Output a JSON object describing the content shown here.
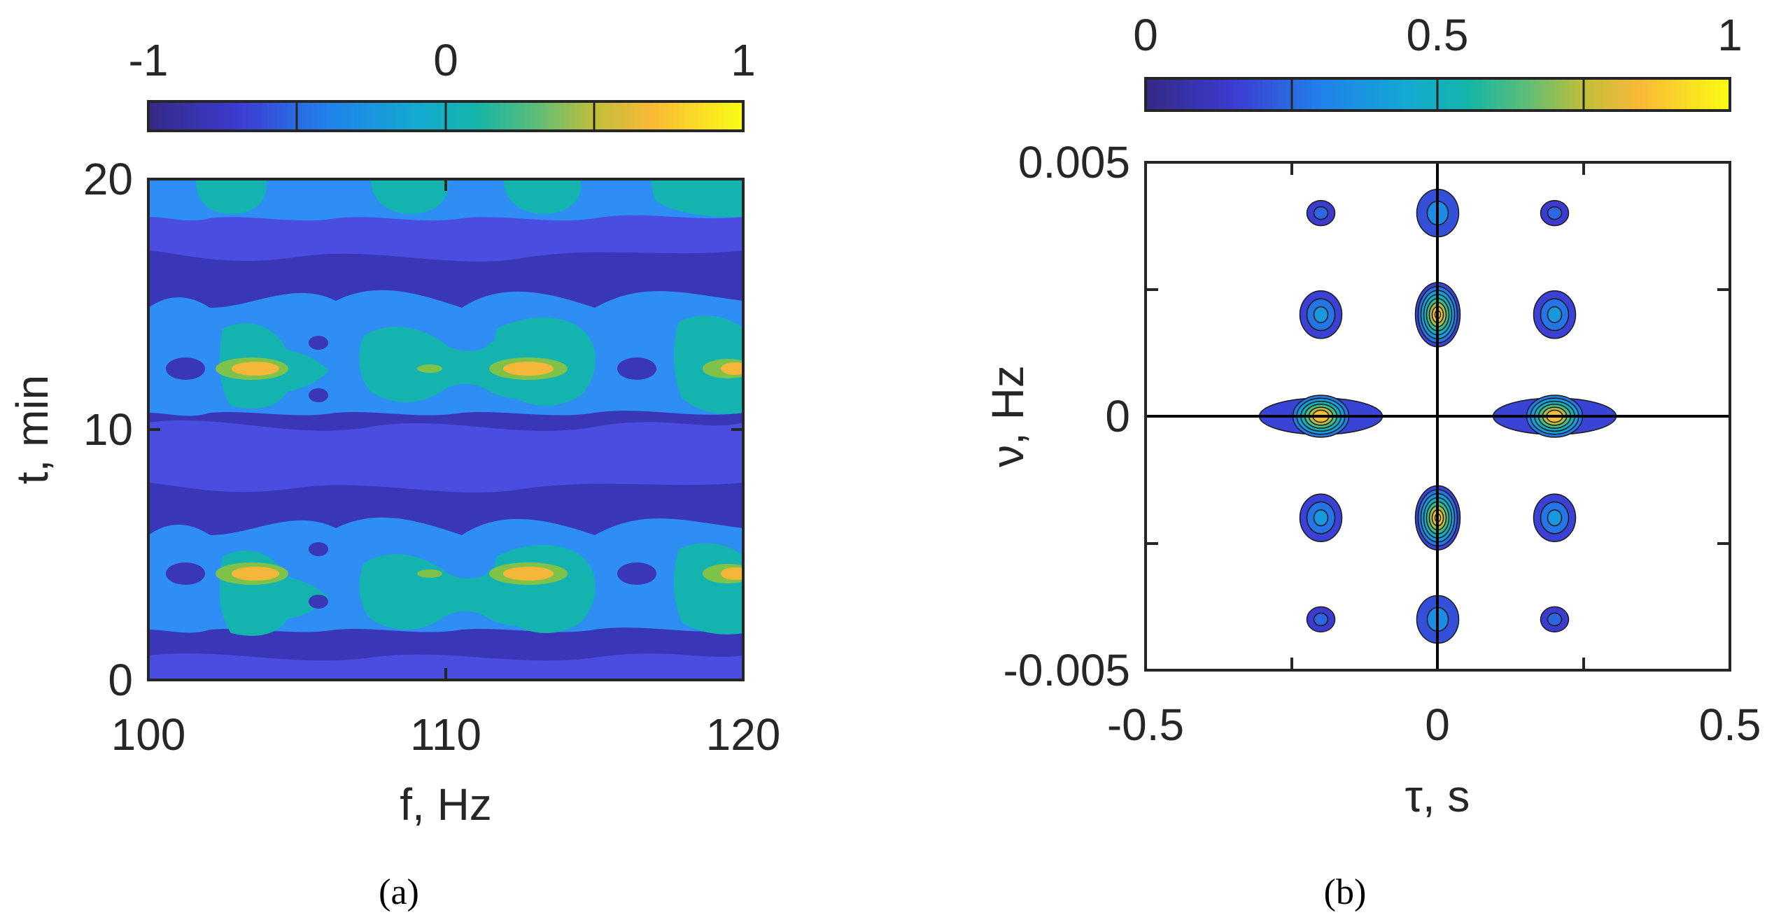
{
  "chart_data": [
    {
      "type": "heatmap",
      "panel": "a",
      "caption": "(a)",
      "xlabel": "f, Hz",
      "ylabel": "t, min",
      "xlim": [
        100,
        120
      ],
      "ylim": [
        0,
        20
      ],
      "x_ticks": [
        "100",
        "110",
        "120"
      ],
      "y_ticks": [
        "0",
        "10",
        "20"
      ],
      "colorbar": {
        "range": [
          -1,
          1
        ],
        "levels": [
          -1,
          -0.5,
          0,
          0.5,
          1
        ],
        "tick_labels": [
          "-1",
          "0",
          "1"
        ],
        "placement": "top"
      },
      "description_values": {
        "modulation_period_min": 8.3,
        "peak_rows_t_min": [
          4.2,
          12.5
        ],
        "trough_rows_t_min": [
          0.3,
          8.5,
          16.8
        ],
        "peak_columns_f_hz": [
          104.1,
          113,
          120
        ],
        "peak_value": 0.85,
        "trough_value": -0.95
      }
    },
    {
      "type": "heatmap",
      "panel": "b",
      "caption": "(b)",
      "xlabel": "τ, s",
      "ylabel": "ν, Hz",
      "xlim": [
        -0.5,
        0.5
      ],
      "ylim": [
        -0.005,
        0.005
      ],
      "x_ticks": [
        "-0.5",
        "0",
        "0.5"
      ],
      "y_ticks": [
        "-0.005",
        "0",
        "0.005"
      ],
      "colorbar": {
        "range": [
          0,
          1
        ],
        "levels": [
          0,
          0.25,
          0.5,
          0.75,
          1
        ],
        "tick_labels": [
          "0",
          "0.5",
          "1"
        ],
        "placement": "top"
      },
      "peaks": [
        {
          "tau": 0,
          "nu": 0.002,
          "value": 0.95
        },
        {
          "tau": 0,
          "nu": -0.002,
          "value": 0.95
        },
        {
          "tau": -0.2,
          "nu": 0,
          "value": 0.85
        },
        {
          "tau": 0.2,
          "nu": 0,
          "value": 0.85
        },
        {
          "tau": -0.2,
          "nu": 0.002,
          "value": 0.35
        },
        {
          "tau": 0.2,
          "nu": 0.002,
          "value": 0.35
        },
        {
          "tau": -0.2,
          "nu": -0.002,
          "value": 0.35
        },
        {
          "tau": 0.2,
          "nu": -0.002,
          "value": 0.35
        },
        {
          "tau": 0,
          "nu": 0.004,
          "value": 0.3
        },
        {
          "tau": 0,
          "nu": -0.004,
          "value": 0.3
        },
        {
          "tau": -0.2,
          "nu": 0.004,
          "value": 0.2
        },
        {
          "tau": 0.2,
          "nu": 0.004,
          "value": 0.2
        },
        {
          "tau": -0.2,
          "nu": -0.004,
          "value": 0.2
        },
        {
          "tau": 0.2,
          "nu": -0.004,
          "value": 0.2
        }
      ]
    }
  ]
}
